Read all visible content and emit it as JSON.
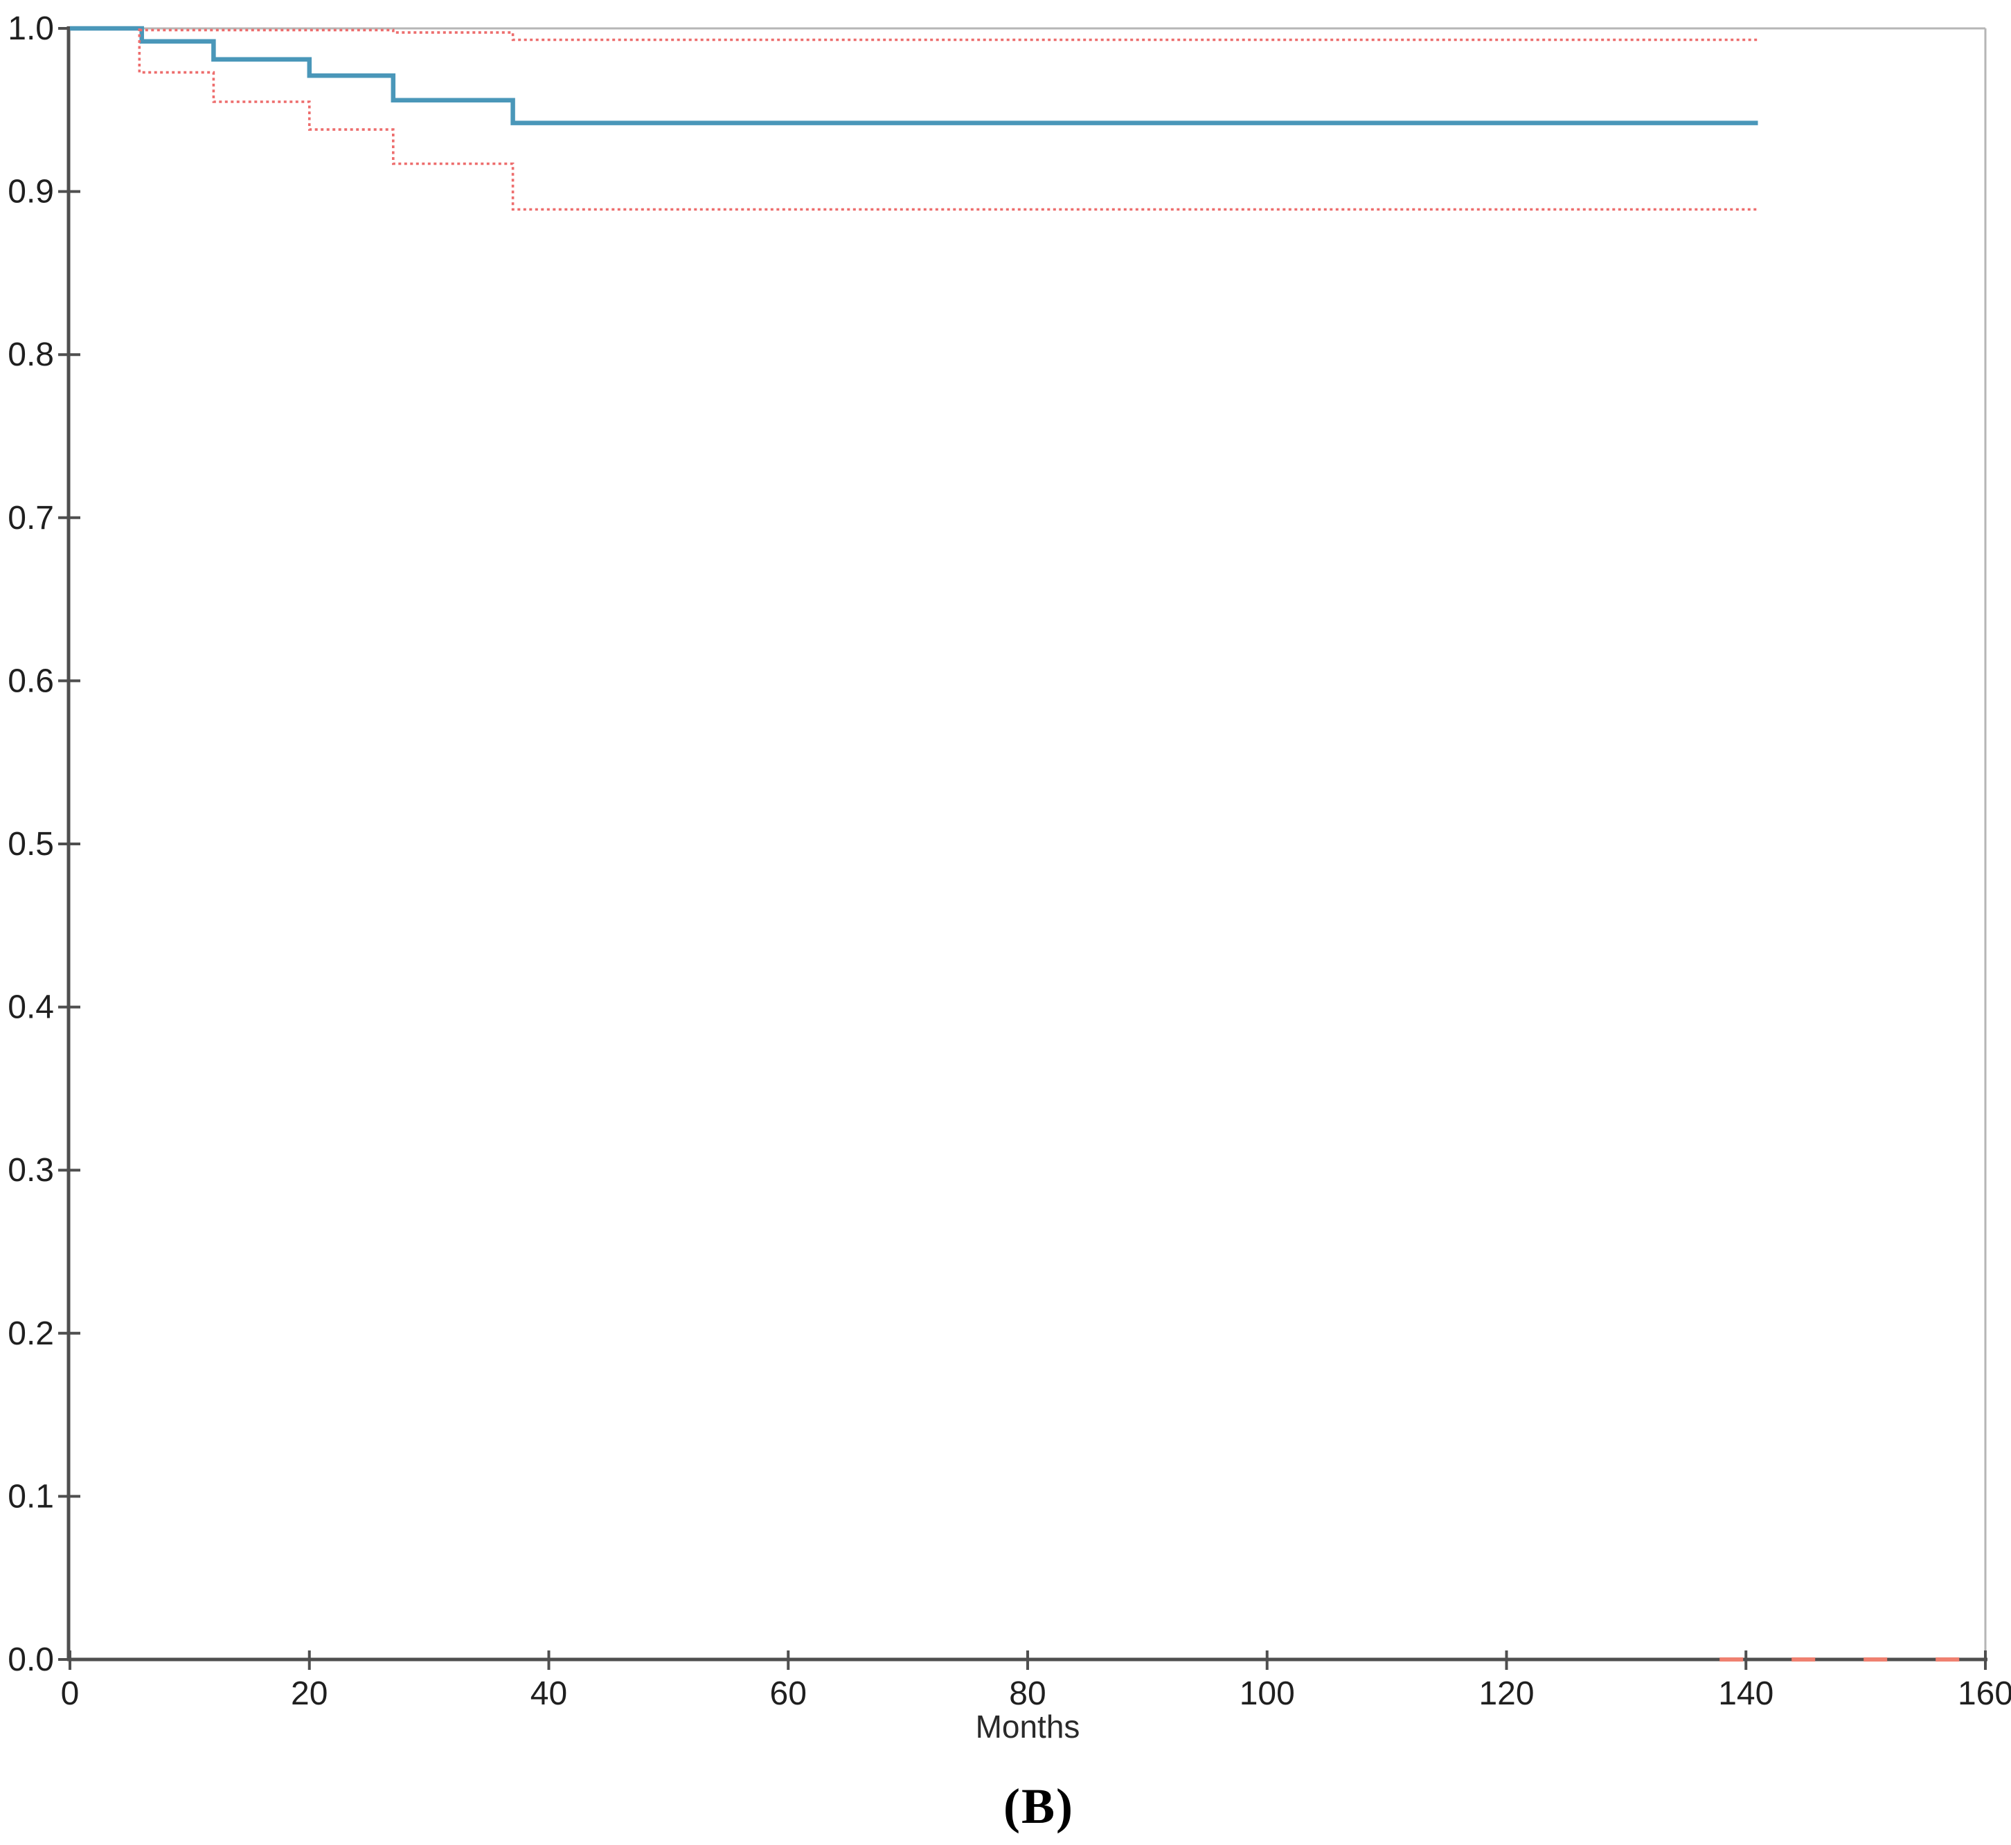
{
  "figure": {
    "caption": "(B)",
    "background": "#ffffff"
  },
  "chart_data": {
    "type": "line",
    "subtype": "kaplan-meier-step-curve",
    "title": "",
    "xlabel": "Months",
    "ylabel": "",
    "xlim": [
      0,
      160
    ],
    "ylim": [
      0.0,
      1.0
    ],
    "x_ticks": [
      0,
      20,
      40,
      60,
      80,
      100,
      120,
      140,
      160
    ],
    "y_tick_labels": [
      "1.0",
      "0.9",
      "0.8",
      "0.7",
      "0.6",
      "0.5",
      "0.4",
      "0.3",
      "0.2",
      "0.1",
      "0.0"
    ],
    "grid": false,
    "legend_position": "none",
    "colors": {
      "axis": "#4f4f4f",
      "frame": "#b6b6b6",
      "tick_label": "#1f1f1f",
      "survival": "#4a97b9",
      "confidence_interval": "#ed6d6d",
      "tail_dash": "#ef8070"
    },
    "series": [
      {
        "name": "survival-estimate",
        "style": "solid",
        "color_key": "survival",
        "width": 6.5,
        "points": [
          [
            0,
            1.0
          ],
          [
            6,
            1.0
          ],
          [
            6,
            0.992
          ],
          [
            12,
            0.992
          ],
          [
            12,
            0.981
          ],
          [
            20,
            0.981
          ],
          [
            20,
            0.971
          ],
          [
            27,
            0.971
          ],
          [
            27,
            0.956
          ],
          [
            37,
            0.956
          ],
          [
            37,
            0.942
          ],
          [
            141,
            0.942
          ]
        ]
      },
      {
        "name": "upper-95ci",
        "style": "dotted",
        "color_key": "confidence_interval",
        "width": 3.6,
        "points": [
          [
            5.8,
            0.999
          ],
          [
            27,
            0.999
          ],
          [
            27,
            0.9975
          ],
          [
            37,
            0.9975
          ],
          [
            37,
            0.993
          ],
          [
            141,
            0.993
          ]
        ]
      },
      {
        "name": "lower-95ci",
        "style": "dotted",
        "color_key": "confidence_interval",
        "width": 3.6,
        "points": [
          [
            5.8,
            1.0
          ],
          [
            5.8,
            0.973
          ],
          [
            12,
            0.973
          ],
          [
            12,
            0.955
          ],
          [
            20,
            0.955
          ],
          [
            20,
            0.938
          ],
          [
            27,
            0.938
          ],
          [
            27,
            0.917
          ],
          [
            37,
            0.917
          ],
          [
            37,
            0.889
          ],
          [
            141,
            0.889
          ]
        ]
      },
      {
        "name": "tail-zero-segment",
        "style": "longdash",
        "color_key": "tail_dash",
        "width": 6,
        "points": [
          [
            137.8,
            0.0
          ],
          [
            159.8,
            0.0
          ],
          [
            159.8,
            0.012
          ]
        ]
      }
    ]
  }
}
